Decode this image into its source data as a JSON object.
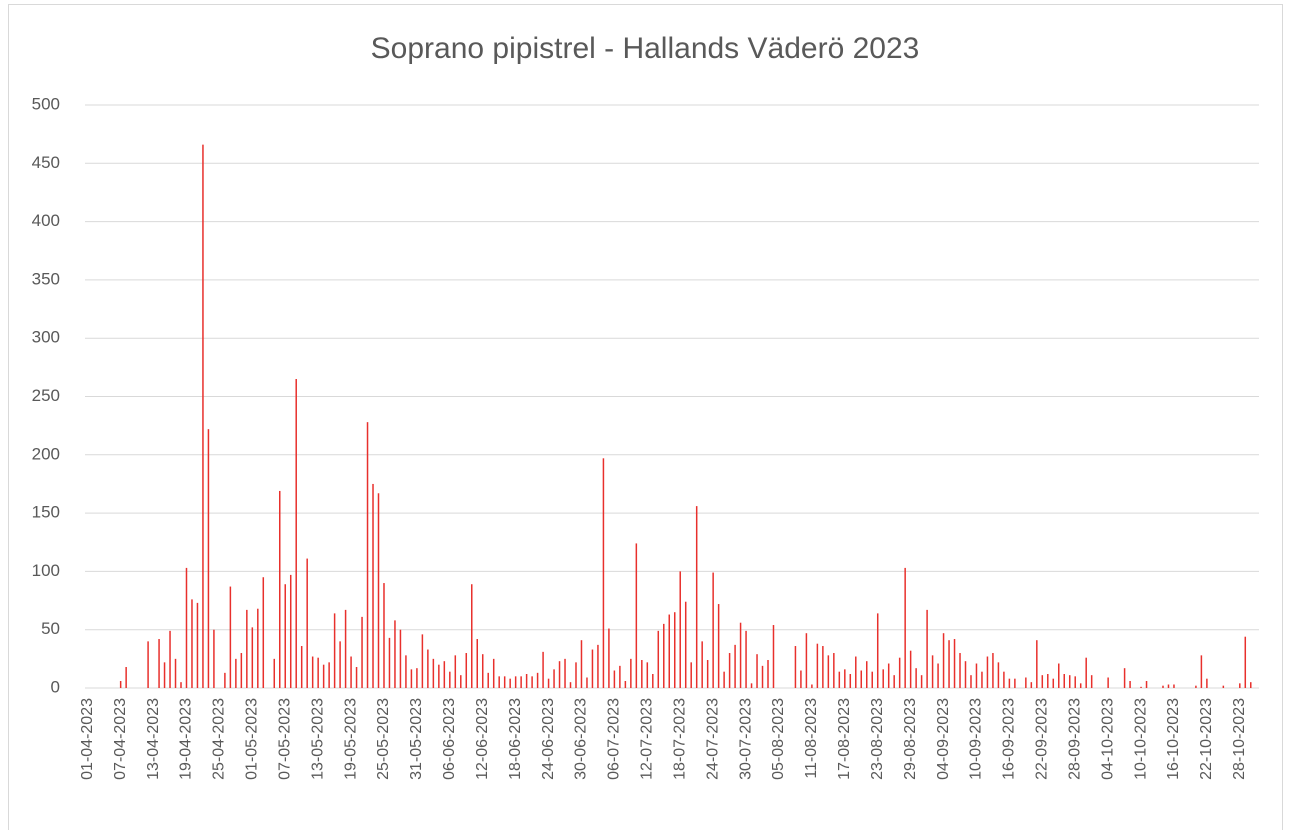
{
  "chart_data": {
    "type": "bar",
    "title": "Soprano pipistrel - Hallands Väderö 2023",
    "categories": [
      "01-04-2023",
      null,
      null,
      null,
      null,
      null,
      "07-04-2023",
      null,
      null,
      null,
      null,
      null,
      "13-04-2023",
      null,
      null,
      null,
      null,
      null,
      "19-04-2023",
      null,
      null,
      null,
      null,
      null,
      "25-04-2023",
      null,
      null,
      null,
      null,
      null,
      "01-05-2023",
      null,
      null,
      null,
      null,
      null,
      "07-05-2023",
      null,
      null,
      null,
      null,
      null,
      "13-05-2023",
      null,
      null,
      null,
      null,
      null,
      "19-05-2023",
      null,
      null,
      null,
      null,
      null,
      "25-05-2023",
      null,
      null,
      null,
      null,
      null,
      "31-05-2023",
      null,
      null,
      null,
      null,
      null,
      "06-06-2023",
      null,
      null,
      null,
      null,
      null,
      "12-06-2023",
      null,
      null,
      null,
      null,
      null,
      "18-06-2023",
      null,
      null,
      null,
      null,
      null,
      "24-06-2023",
      null,
      null,
      null,
      null,
      null,
      "30-06-2023",
      null,
      null,
      null,
      null,
      null,
      "06-07-2023",
      null,
      null,
      null,
      null,
      null,
      "12-07-2023",
      null,
      null,
      null,
      null,
      null,
      "18-07-2023",
      null,
      null,
      null,
      null,
      null,
      "24-07-2023",
      null,
      null,
      null,
      null,
      null,
      "30-07-2023",
      null,
      null,
      null,
      null,
      null,
      "05-08-2023",
      null,
      null,
      null,
      null,
      null,
      "11-08-2023",
      null,
      null,
      null,
      null,
      null,
      "17-08-2023",
      null,
      null,
      null,
      null,
      null,
      "23-08-2023",
      null,
      null,
      null,
      null,
      null,
      "29-08-2023",
      null,
      null,
      null,
      null,
      null,
      "04-09-2023",
      null,
      null,
      null,
      null,
      null,
      "10-09-2023",
      null,
      null,
      null,
      null,
      null,
      "16-09-2023",
      null,
      null,
      null,
      null,
      null,
      "22-09-2023",
      null,
      null,
      null,
      null,
      null,
      "28-09-2023",
      null,
      null,
      null,
      null,
      null,
      "04-10-2023",
      null,
      null,
      null,
      null,
      null,
      "10-10-2023",
      null,
      null,
      null,
      null,
      null,
      "16-10-2023",
      null,
      null,
      null,
      null,
      null,
      "22-10-2023",
      null,
      null,
      null,
      null,
      null,
      "28-10-2023",
      null,
      null,
      null
    ],
    "values": [
      0,
      0,
      0,
      0,
      0,
      0,
      6,
      18,
      0,
      0,
      0,
      40,
      0,
      42,
      22,
      49,
      25,
      5,
      103,
      76,
      73,
      466,
      222,
      50,
      0,
      13,
      87,
      25,
      30,
      67,
      52,
      68,
      95,
      0,
      25,
      169,
      89,
      97,
      265,
      36,
      111,
      27,
      26,
      20,
      22,
      64,
      40,
      67,
      27,
      18,
      61,
      228,
      175,
      167,
      90,
      43,
      58,
      50,
      28,
      16,
      17,
      46,
      33,
      25,
      20,
      23,
      14,
      28,
      11,
      30,
      89,
      42,
      29,
      13,
      25,
      10,
      10,
      8,
      10,
      10,
      12,
      10,
      13,
      31,
      8,
      16,
      23,
      25,
      5,
      22,
      41,
      9,
      33,
      37,
      197,
      51,
      15,
      19,
      6,
      25,
      124,
      24,
      22,
      12,
      49,
      55,
      63,
      65,
      100,
      74,
      22,
      156,
      40,
      24,
      99,
      72,
      14,
      30,
      37,
      56,
      49,
      4,
      29,
      19,
      24,
      54,
      0,
      0,
      0,
      36,
      15,
      47,
      3,
      38,
      36,
      28,
      30,
      14,
      16,
      12,
      27,
      15,
      23,
      14,
      64,
      16,
      21,
      11,
      26,
      103,
      32,
      17,
      11,
      67,
      28,
      21,
      47,
      41,
      42,
      30,
      23,
      11,
      21,
      14,
      27,
      30,
      22,
      14,
      8,
      8,
      0,
      9,
      5,
      41,
      11,
      12,
      8,
      21,
      12,
      11,
      10,
      4,
      26,
      11,
      0,
      0,
      9,
      0,
      0,
      17,
      6,
      0,
      1,
      6,
      0,
      0,
      2,
      3,
      3,
      0,
      0,
      0,
      2,
      28,
      8,
      0,
      0,
      2,
      0,
      0,
      4,
      44,
      5,
      0
    ],
    "color": "#e8302c",
    "ylim": [
      0,
      500
    ],
    "yticks": [
      0,
      50,
      100,
      150,
      200,
      250,
      300,
      350,
      400,
      450,
      500
    ],
    "grid": true
  }
}
